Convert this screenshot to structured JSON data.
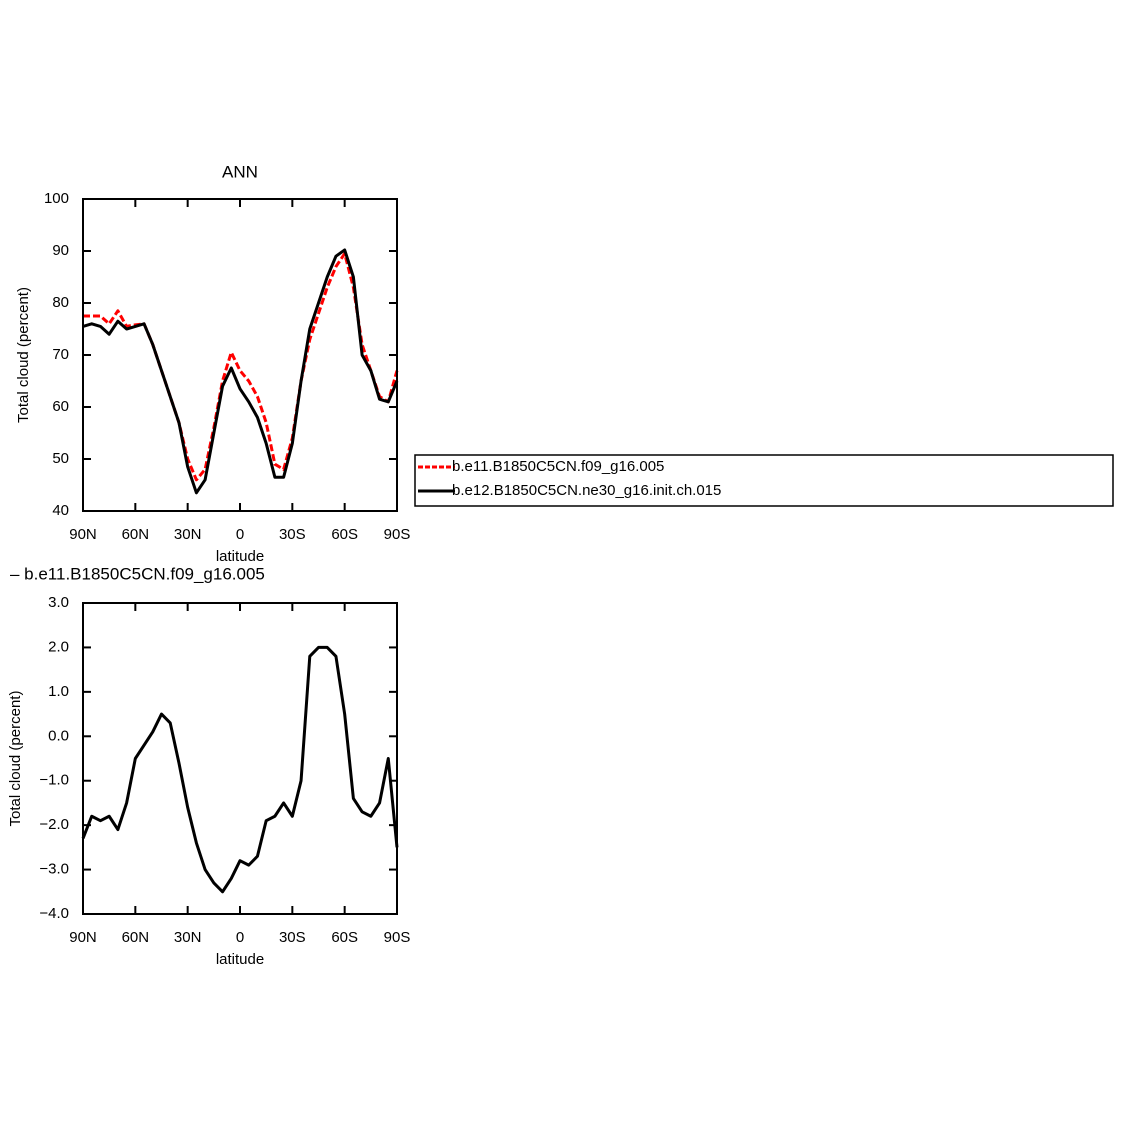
{
  "chart_data": [
    {
      "type": "line",
      "title": "ANN",
      "x_label": "latitude",
      "y_label": "Total cloud (percent)",
      "x": [
        90,
        85,
        80,
        75,
        70,
        65,
        60,
        55,
        50,
        45,
        40,
        35,
        30,
        25,
        20,
        15,
        10,
        5,
        0,
        -5,
        -10,
        -15,
        -20,
        -25,
        -30,
        -35,
        -40,
        -45,
        -50,
        -55,
        -60,
        -65,
        -70,
        -75,
        -80,
        -85,
        -90
      ],
      "series": [
        {
          "name": "b.e11.B1850C5CN.f09_g16.005",
          "color": "#ff0000",
          "dash": true,
          "values": [
            77.5,
            77.5,
            77.5,
            76,
            78.5,
            75.5,
            75.8,
            76,
            72,
            67,
            62,
            57,
            50,
            46,
            48,
            56,
            65,
            70.5,
            67,
            65,
            62,
            57,
            49,
            48,
            54,
            65,
            73,
            78,
            83,
            87,
            89.5,
            83,
            72,
            67,
            62,
            61,
            67
          ]
        },
        {
          "name": "b.e12.B1850C5CN.ne30_g16.init.ch.015",
          "color": "#000000",
          "dash": false,
          "values": [
            75.5,
            76,
            75.5,
            74,
            76.5,
            75,
            75.5,
            76,
            72,
            67,
            62,
            57,
            48.5,
            43.5,
            46,
            55,
            64,
            67.5,
            63.5,
            61,
            58,
            53,
            46.5,
            46.5,
            53,
            65,
            75,
            80,
            85,
            89,
            90.2,
            85,
            70,
            67,
            61.5,
            61,
            65
          ]
        }
      ],
      "xlim": [
        90,
        -90
      ],
      "ylim": [
        40,
        100
      ],
      "xticks": [
        {
          "value": 90,
          "label": "90N"
        },
        {
          "value": 60,
          "label": "60N"
        },
        {
          "value": 30,
          "label": "30N"
        },
        0,
        {
          "value": -30,
          "label": "30S"
        },
        {
          "value": -60,
          "label": "60S"
        },
        {
          "value": -90,
          "label": "90S"
        }
      ],
      "yticks": [
        40,
        50,
        60,
        70,
        80,
        90,
        100
      ],
      "legend": "right"
    },
    {
      "type": "line",
      "title": "– b.e11.B1850C5CN.f09_g16.005",
      "x_label": "latitude",
      "y_label": "Total cloud (percent)",
      "x": [
        90,
        85,
        80,
        75,
        70,
        65,
        60,
        55,
        50,
        45,
        40,
        35,
        30,
        25,
        20,
        15,
        10,
        5,
        0,
        -5,
        -10,
        -15,
        -20,
        -25,
        -30,
        -35,
        -40,
        -45,
        -50,
        -55,
        -60,
        -65,
        -70,
        -75,
        -80,
        -85,
        -90
      ],
      "series": [
        {
          "color": "#000000",
          "dash": false,
          "values": [
            -2.3,
            -1.8,
            -1.9,
            -1.8,
            -2.1,
            -1.5,
            -0.5,
            -0.2,
            0.1,
            0.5,
            0.3,
            -0.6,
            -1.6,
            -2.4,
            -3.0,
            -3.3,
            -3.5,
            -3.2,
            -2.8,
            -2.9,
            -2.7,
            -1.9,
            -1.8,
            -1.5,
            -1.8,
            -1.0,
            1.8,
            2.0,
            2.0,
            1.8,
            0.5,
            -1.4,
            -1.7,
            -1.8,
            -1.5,
            -0.5,
            -2.5
          ]
        }
      ],
      "xlim": [
        90,
        -90
      ],
      "ylim": [
        -4,
        3
      ],
      "xticks": [
        {
          "value": 90,
          "label": "90N"
        },
        {
          "value": 60,
          "label": "60N"
        },
        {
          "value": 30,
          "label": "30N"
        },
        0,
        {
          "value": -30,
          "label": "30S"
        },
        {
          "value": -60,
          "label": "60S"
        },
        {
          "value": -90,
          "label": "90S"
        }
      ],
      "yticks": [
        {
          "value": -4,
          "label": "−4.0"
        },
        {
          "value": -3,
          "label": "−3.0"
        },
        {
          "value": -2,
          "label": "−2.0"
        },
        {
          "value": -1,
          "label": "−1.0"
        },
        {
          "value": 0,
          "label": "0.0"
        },
        {
          "value": 1,
          "label": "1.0"
        },
        {
          "value": 2,
          "label": "2.0"
        },
        {
          "value": 3,
          "label": "3.0"
        }
      ]
    }
  ]
}
